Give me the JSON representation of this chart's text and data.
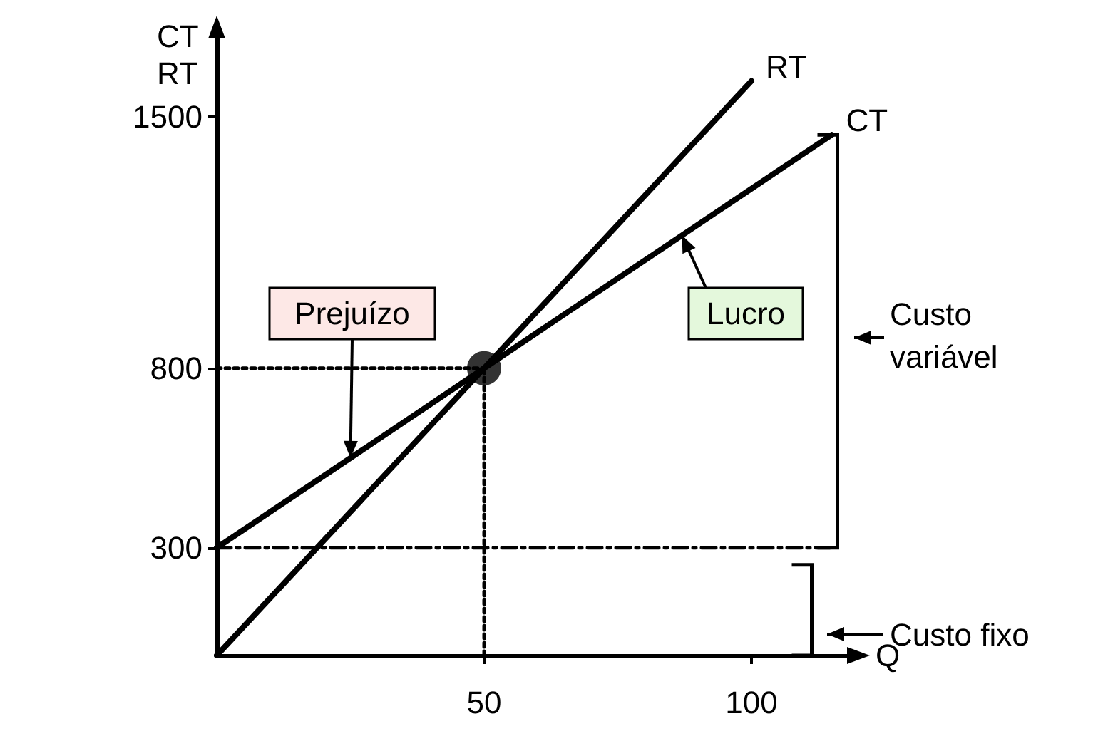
{
  "chart_data": {
    "type": "line",
    "xlabel": "Q",
    "ylabel": "CT\nRT",
    "xlim": [
      0,
      120
    ],
    "ylim": [
      0,
      1750
    ],
    "xticks": [
      50,
      100
    ],
    "yticks": [
      300,
      800,
      1500
    ],
    "grid": false,
    "legend": false,
    "marker": "none",
    "line_style": "solid",
    "series": [
      {
        "name": "RT",
        "type": "line",
        "x": [
          0,
          100
        ],
        "values": [
          0,
          1600
        ],
        "color": "#000000"
      },
      {
        "name": "CT",
        "type": "line",
        "x": [
          0,
          115
        ],
        "values": [
          300,
          1450
        ],
        "color": "#000000"
      },
      {
        "type": "line",
        "x": [
          0,
          115
        ],
        "values": [
          300,
          300
        ],
        "color": "#000000",
        "line_style": "dashed"
      },
      {
        "type": "line",
        "x": [
          0,
          50
        ],
        "values": [
          800,
          800
        ],
        "color": "#000000",
        "line_style": "dotted"
      },
      {
        "type": "line",
        "x": [
          50,
          50
        ],
        "values": [
          0,
          800
        ],
        "color": "#000000",
        "line_style": "dotted"
      },
      {
        "type": "scatter",
        "x": [
          50
        ],
        "values": [
          800
        ],
        "color": "#000000",
        "marker": "circle"
      }
    ],
    "annotations": [
      {
        "text": "Prejuízo",
        "x": 25,
        "y": 550
      },
      {
        "text": "Lucro",
        "x": 87,
        "y": 1170
      },
      "Custo variável",
      "Custo fixo"
    ]
  }
}
